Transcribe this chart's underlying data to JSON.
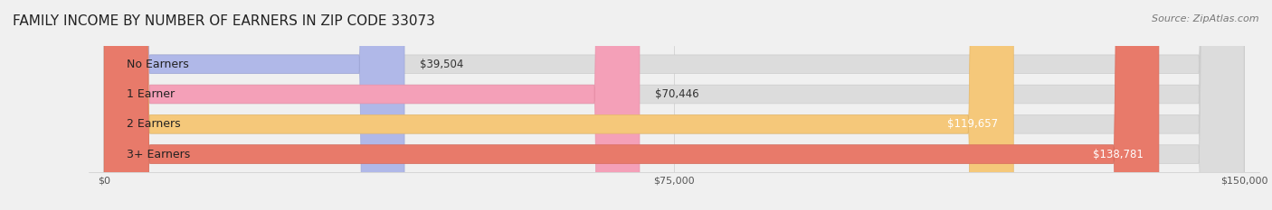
{
  "title": "FAMILY INCOME BY NUMBER OF EARNERS IN ZIP CODE 33073",
  "source": "Source: ZipAtlas.com",
  "categories": [
    "No Earners",
    "1 Earner",
    "2 Earners",
    "3+ Earners"
  ],
  "values": [
    39504,
    70446,
    119657,
    138781
  ],
  "bar_colors": [
    "#b0b8e8",
    "#f4a0b8",
    "#f5c87a",
    "#e87a6a"
  ],
  "bar_edge_colors": [
    "#a0a8d8",
    "#e890a8",
    "#e5b86a",
    "#d86a5a"
  ],
  "label_colors": [
    "#444444",
    "#444444",
    "#ffffff",
    "#ffffff"
  ],
  "value_labels": [
    "$39,504",
    "$70,446",
    "$119,657",
    "$138,781"
  ],
  "x_max": 150000,
  "x_ticks": [
    0,
    75000,
    150000
  ],
  "x_tick_labels": [
    "$0",
    "$75,000",
    "$150,000"
  ],
  "background_color": "#f0f0f0",
  "bar_bg_color": "#e8e8e8",
  "title_fontsize": 11,
  "source_fontsize": 8,
  "label_fontsize": 9,
  "value_fontsize": 8.5
}
